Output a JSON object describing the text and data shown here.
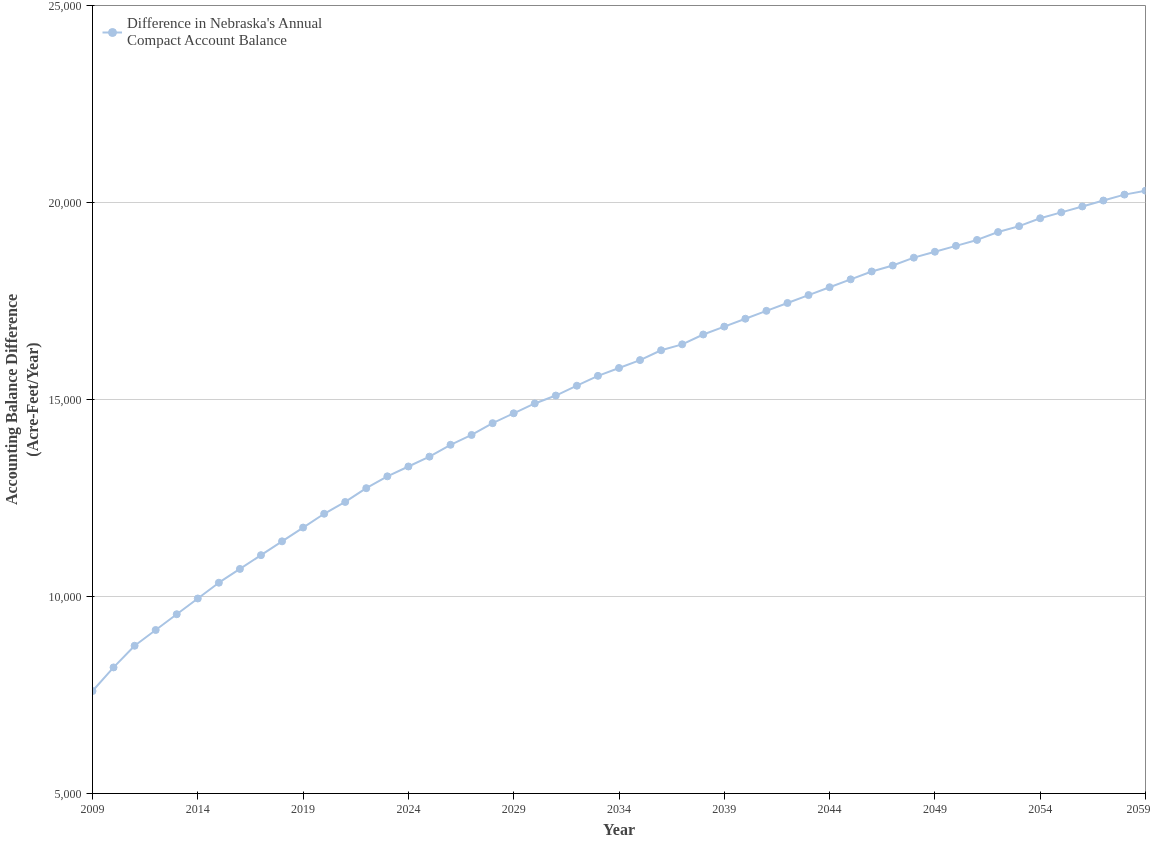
{
  "chart_data": {
    "type": "line",
    "xlabel": "Year",
    "ylabel": "Accounting Balance Difference\n(Acre-Feet/Year)",
    "x": [
      2009,
      2010,
      2011,
      2012,
      2013,
      2014,
      2015,
      2016,
      2017,
      2018,
      2019,
      2020,
      2021,
      2022,
      2023,
      2024,
      2025,
      2026,
      2027,
      2028,
      2029,
      2030,
      2031,
      2032,
      2033,
      2034,
      2035,
      2036,
      2037,
      2038,
      2039,
      2040,
      2041,
      2042,
      2043,
      2044,
      2045,
      2046,
      2047,
      2048,
      2049,
      2050,
      2051,
      2052,
      2053,
      2054,
      2055,
      2056,
      2057,
      2058,
      2059
    ],
    "series": [
      {
        "name": "Difference in Nebraska's Annual\nCompact Account Balance",
        "color": "#a9c4e4",
        "values": [
          7600,
          8200,
          8750,
          9150,
          9550,
          9950,
          10350,
          10700,
          11050,
          11400,
          11750,
          12100,
          12400,
          12750,
          13050,
          13300,
          13550,
          13850,
          14100,
          14400,
          14650,
          14900,
          15100,
          15350,
          15600,
          15800,
          16000,
          16250,
          16400,
          16650,
          16850,
          17050,
          17250,
          17450,
          17650,
          17850,
          18050,
          18250,
          18400,
          18600,
          18750,
          18900,
          19050,
          19250,
          19400,
          19600,
          19750,
          19900,
          20050,
          20200,
          20300
        ]
      }
    ],
    "xlim": [
      2009,
      2059
    ],
    "xticks": [
      2009,
      2014,
      2019,
      2024,
      2029,
      2034,
      2039,
      2044,
      2049,
      2054,
      2059
    ],
    "ylim": [
      5000,
      25000
    ],
    "yticks": [
      {
        "value": 5000,
        "label": "5,000"
      },
      {
        "value": 10000,
        "label": "10,000"
      },
      {
        "value": 15000,
        "label": "15,000"
      },
      {
        "value": 20000,
        "label": "20,000"
      },
      {
        "value": 25000,
        "label": "25,000"
      }
    ],
    "grid": "y",
    "legend": "top left",
    "marker": "circle",
    "line_style": "solid"
  }
}
